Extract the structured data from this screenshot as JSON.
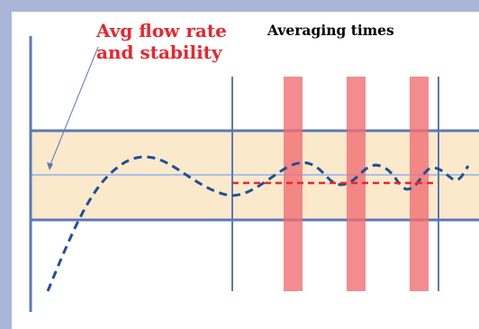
{
  "annotations": {
    "flow_label_line1": "Avg flow rate",
    "flow_label_line2": "and stability",
    "averaging_label": "Averaging times"
  },
  "colors": {
    "frame": "#aab6d8",
    "band": "#fbe9cc",
    "axis": "#5b78b6",
    "target_line": "#a9c0e6",
    "flow_curve": "#1f4f97",
    "average_line": "#e8262f",
    "averaging_window": "#f06e73",
    "label_red": "#e8262f"
  }
}
